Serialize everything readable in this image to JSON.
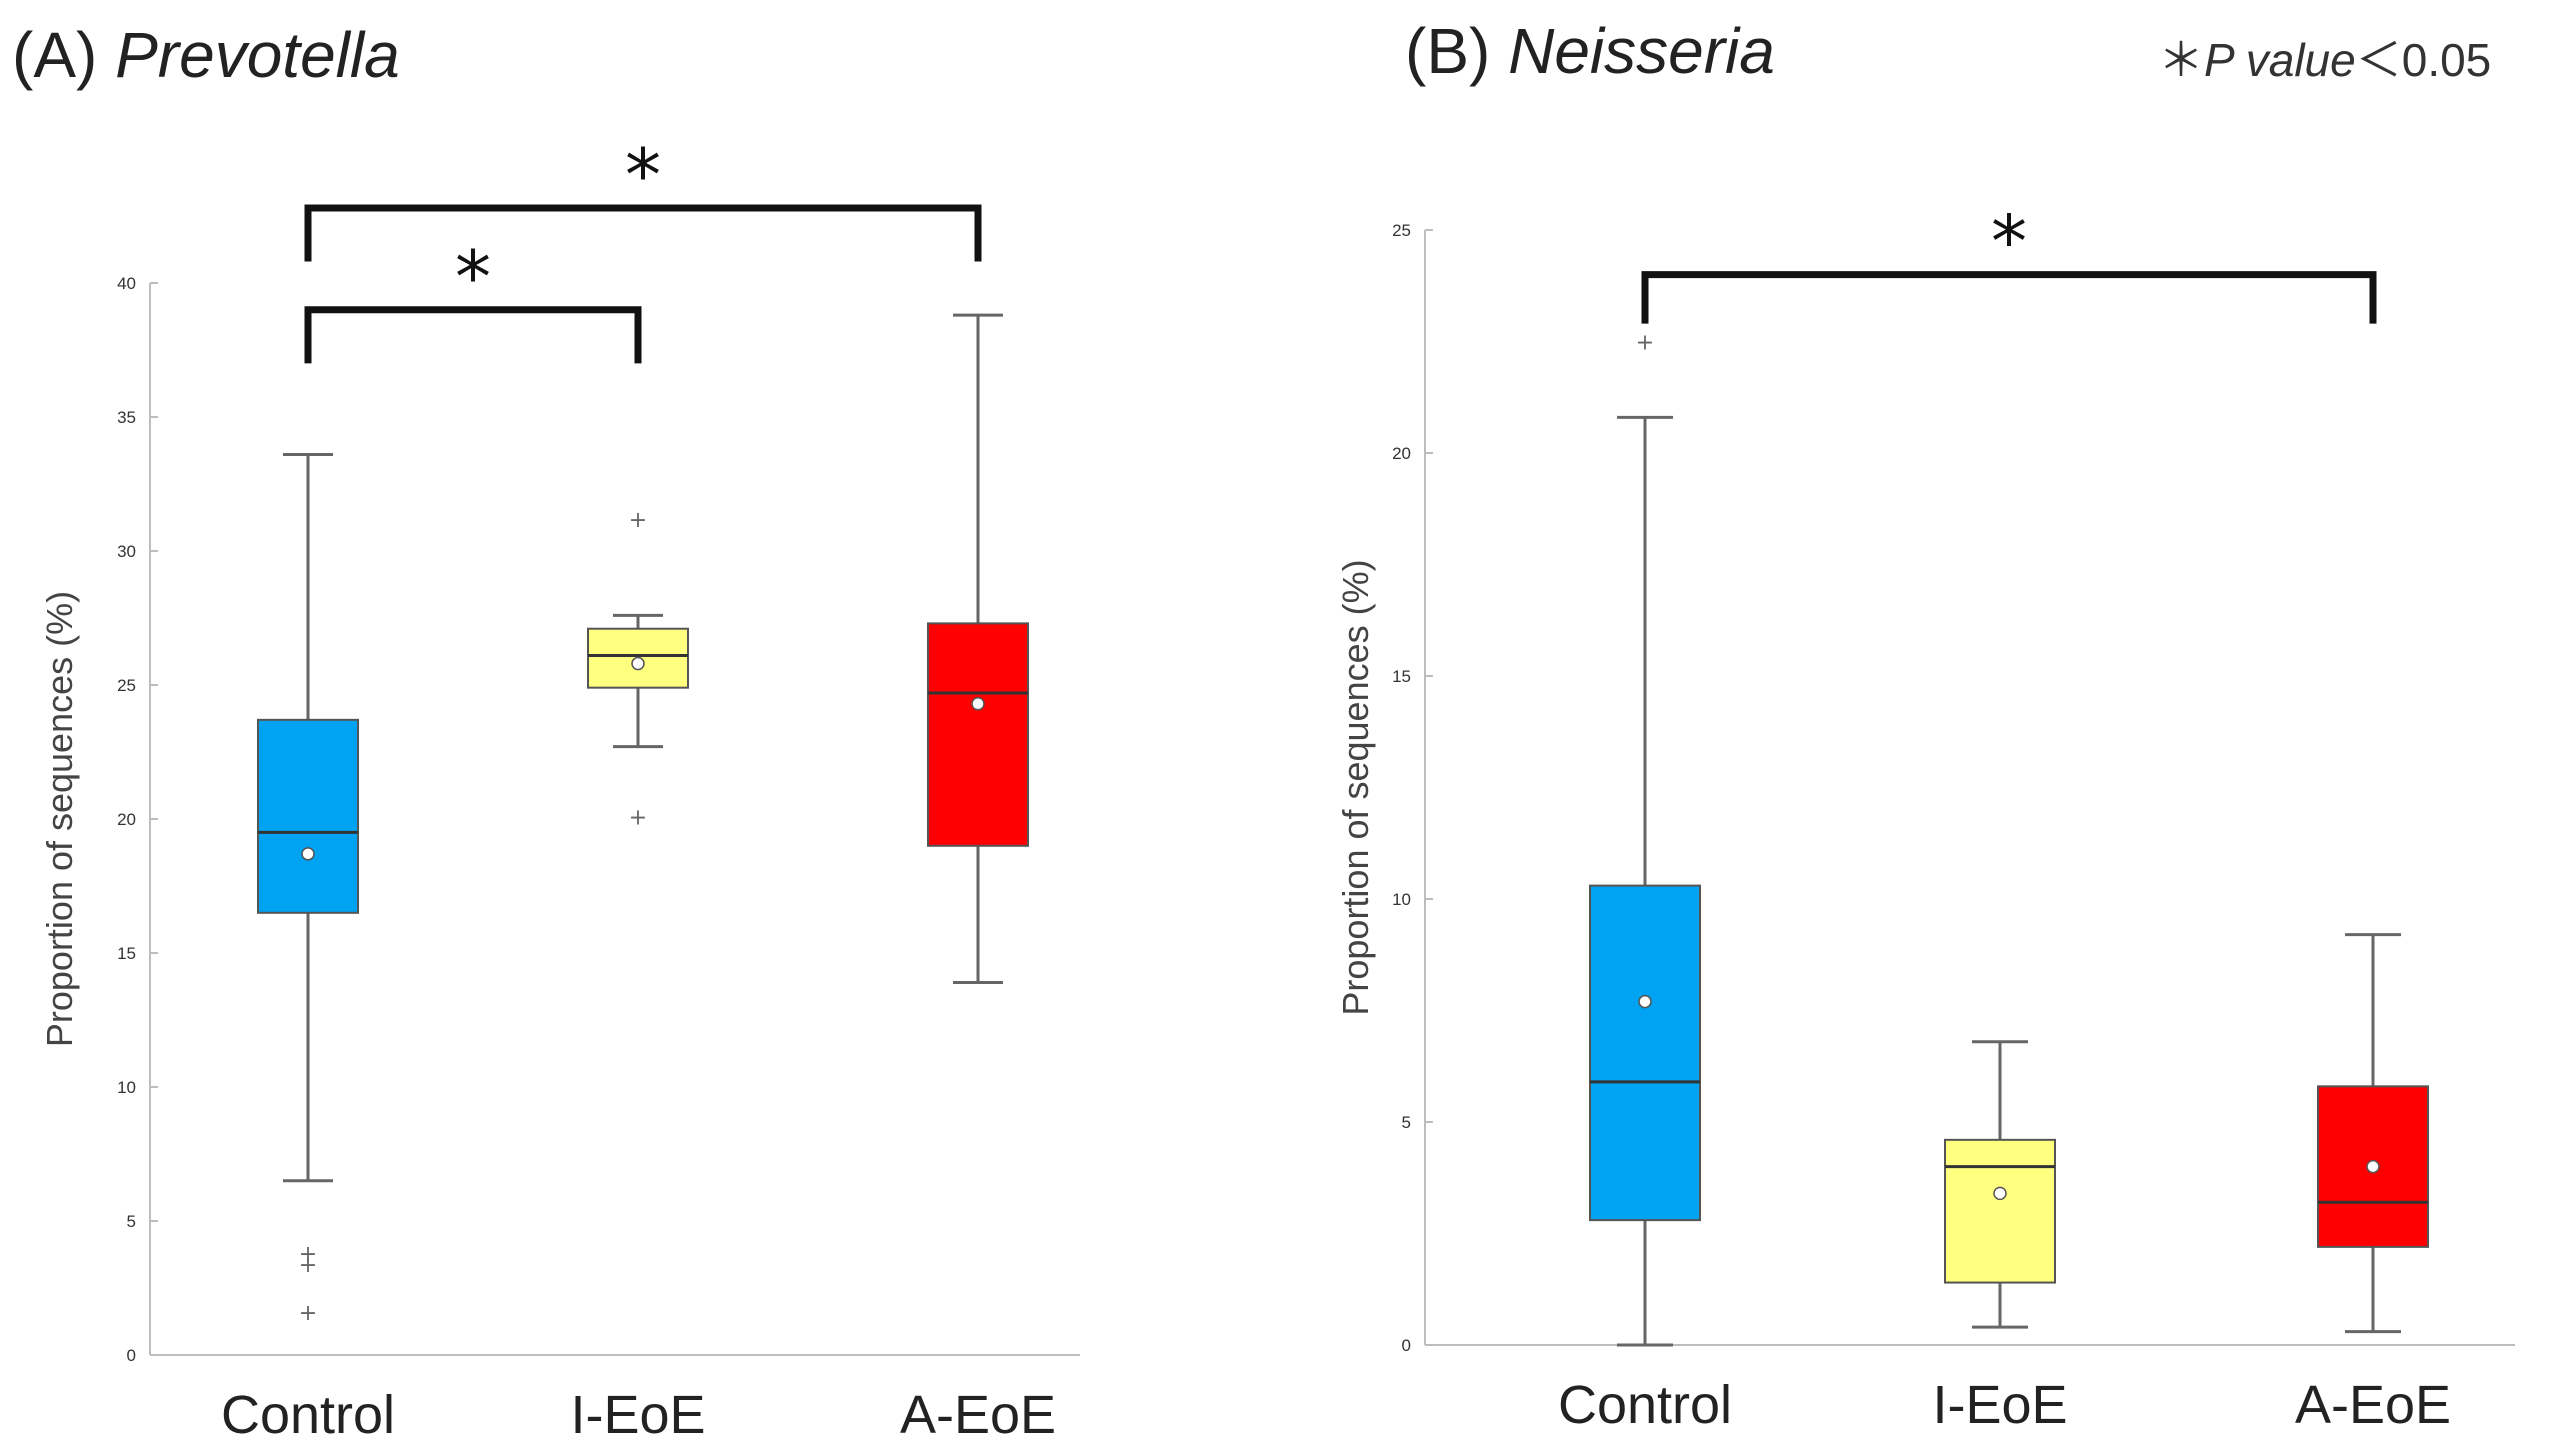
{
  "significance_note": {
    "symbol": "＊",
    "label": "P value",
    "operator": "＜",
    "threshold": "0.05"
  },
  "colors": {
    "Control": "#00a2f2",
    "I-EoE": "#ffff80",
    "A-EoE": "#ff0000",
    "axis": "#bdbdbd",
    "whisker": "#666666",
    "bracket": "#111111",
    "text": "#222222"
  },
  "chart_data": [
    {
      "type": "box",
      "panel_letter": "(A)",
      "title": "Prevotella",
      "ylabel": "Proportion of sequences (%)",
      "xlabel": "",
      "ylim": [
        0,
        40
      ],
      "yticks": [
        0,
        5,
        10,
        15,
        20,
        25,
        30,
        35,
        40
      ],
      "categories": [
        "Control",
        "I-EoE",
        "A-EoE"
      ],
      "boxes": [
        {
          "group": "Control",
          "min": 6.5,
          "q1": 16.5,
          "median": 19.5,
          "q3": 23.7,
          "max": 33.6,
          "mean": 18.7,
          "outliers": [
            3.8,
            3.4,
            1.6
          ]
        },
        {
          "group": "I-EoE",
          "min": 22.7,
          "q1": 24.9,
          "median": 26.1,
          "q3": 27.1,
          "max": 27.6,
          "mean": 25.8,
          "outliers": [
            31.2,
            20.1
          ]
        },
        {
          "group": "A-EoE",
          "min": 13.9,
          "q1": 19.0,
          "median": 24.7,
          "q3": 27.3,
          "max": 38.8,
          "mean": 24.3,
          "outliers": []
        }
      ],
      "significance": [
        {
          "from": "Control",
          "to": "I-EoE",
          "level": 39,
          "drop": 2,
          "label": "*"
        },
        {
          "from": "Control",
          "to": "A-EoE",
          "level": 42.8,
          "drop": 2,
          "label": "*"
        }
      ]
    },
    {
      "type": "box",
      "panel_letter": "(B)",
      "title": "Neisseria",
      "ylabel": "Proportion of sequences (%)",
      "xlabel": "",
      "ylim": [
        0,
        25
      ],
      "yticks": [
        0,
        5,
        10,
        15,
        20,
        25
      ],
      "categories": [
        "Control",
        "I-EoE",
        "A-EoE"
      ],
      "boxes": [
        {
          "group": "Control",
          "min": 0,
          "q1": 2.8,
          "median": 5.9,
          "q3": 10.3,
          "max": 20.8,
          "mean": 7.7,
          "outliers": [
            22.5
          ]
        },
        {
          "group": "I-EoE",
          "min": 0.4,
          "q1": 1.4,
          "median": 4.0,
          "q3": 4.6,
          "max": 6.8,
          "mean": 3.4,
          "outliers": []
        },
        {
          "group": "A-EoE",
          "min": 0.3,
          "q1": 2.2,
          "median": 3.2,
          "q3": 5.8,
          "max": 9.2,
          "mean": 4.0,
          "outliers": []
        }
      ],
      "significance": [
        {
          "from": "Control",
          "to": "A-EoE",
          "level": 24.0,
          "drop": 1.1,
          "label": "*"
        }
      ]
    }
  ]
}
